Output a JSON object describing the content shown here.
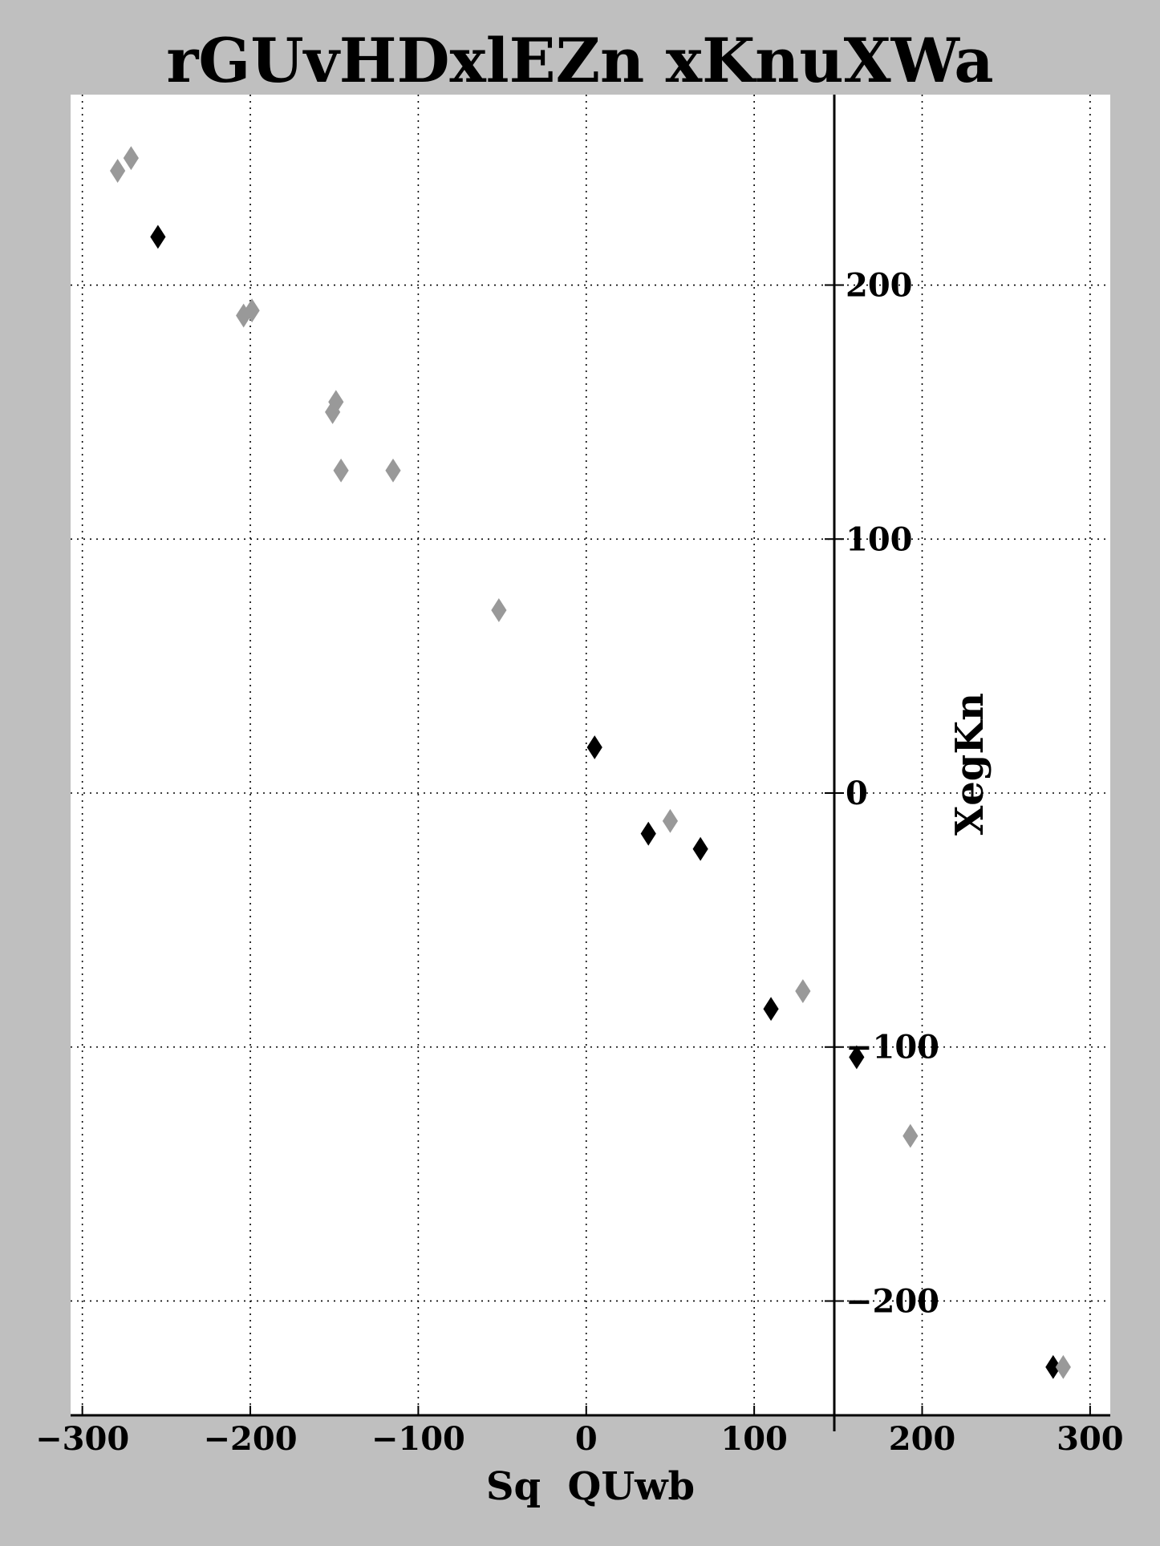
{
  "chart_data": {
    "type": "scatter",
    "title": "rGUvHDxlEZn xKnuXWa",
    "xlabel": "Sq  QUwb",
    "ylabel": "XegKn",
    "xlim": [
      -307,
      312
    ],
    "ylim": [
      -245,
      275
    ],
    "xticks": [
      -300,
      -200,
      -100,
      0,
      100,
      200,
      300
    ],
    "yticks": [
      -200,
      -100,
      0,
      100,
      200
    ],
    "xtick_labels": [
      "−300",
      "−200",
      "−100",
      "0",
      "100",
      "200",
      "300"
    ],
    "ytick_labels": [
      "−200",
      "−100",
      "0",
      "100",
      "200"
    ],
    "grid": true,
    "marker": "thin-diamond",
    "series": [
      {
        "color": "#000000",
        "points": [
          {
            "x": -255,
            "y": 219
          },
          {
            "x": 5,
            "y": 18
          },
          {
            "x": 37,
            "y": -16
          },
          {
            "x": 68,
            "y": -22
          },
          {
            "x": 110,
            "y": -85
          },
          {
            "x": 161,
            "y": -104
          },
          {
            "x": 278,
            "y": -226
          }
        ]
      },
      {
        "color": "#999999",
        "points": [
          {
            "x": -279,
            "y": 245
          },
          {
            "x": -271,
            "y": 250
          },
          {
            "x": -204,
            "y": 188
          },
          {
            "x": -199,
            "y": 190
          },
          {
            "x": -151,
            "y": 150
          },
          {
            "x": -149,
            "y": 154
          },
          {
            "x": -146,
            "y": 127
          },
          {
            "x": -115,
            "y": 127
          },
          {
            "x": -52,
            "y": 72
          },
          {
            "x": 50,
            "y": -11
          },
          {
            "x": 129,
            "y": -78
          },
          {
            "x": 193,
            "y": -135
          },
          {
            "x": 284,
            "y": -226
          }
        ]
      }
    ]
  }
}
